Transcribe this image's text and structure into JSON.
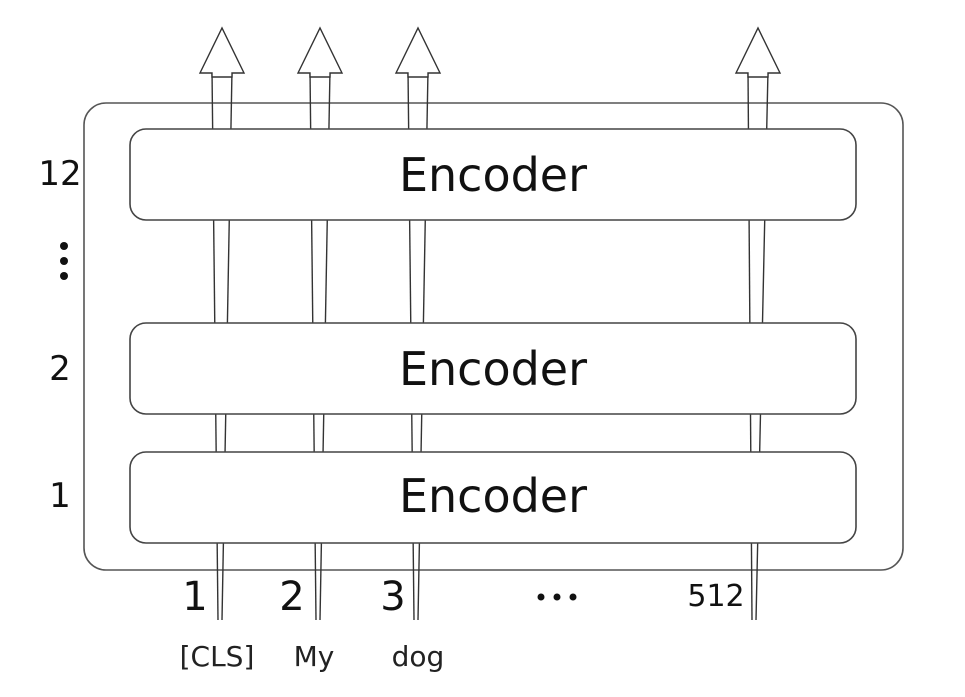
{
  "encoders": [
    {
      "label": "Encoder",
      "layer": "12"
    },
    {
      "label": "Encoder",
      "layer": "2"
    },
    {
      "label": "Encoder",
      "layer": "1"
    }
  ],
  "layer_ellipsis": "⋮",
  "positions": [
    "1",
    "2",
    "3",
    "512"
  ],
  "position_ellipsis": "…",
  "tokens": [
    "[CLS]",
    "My",
    "dog"
  ]
}
